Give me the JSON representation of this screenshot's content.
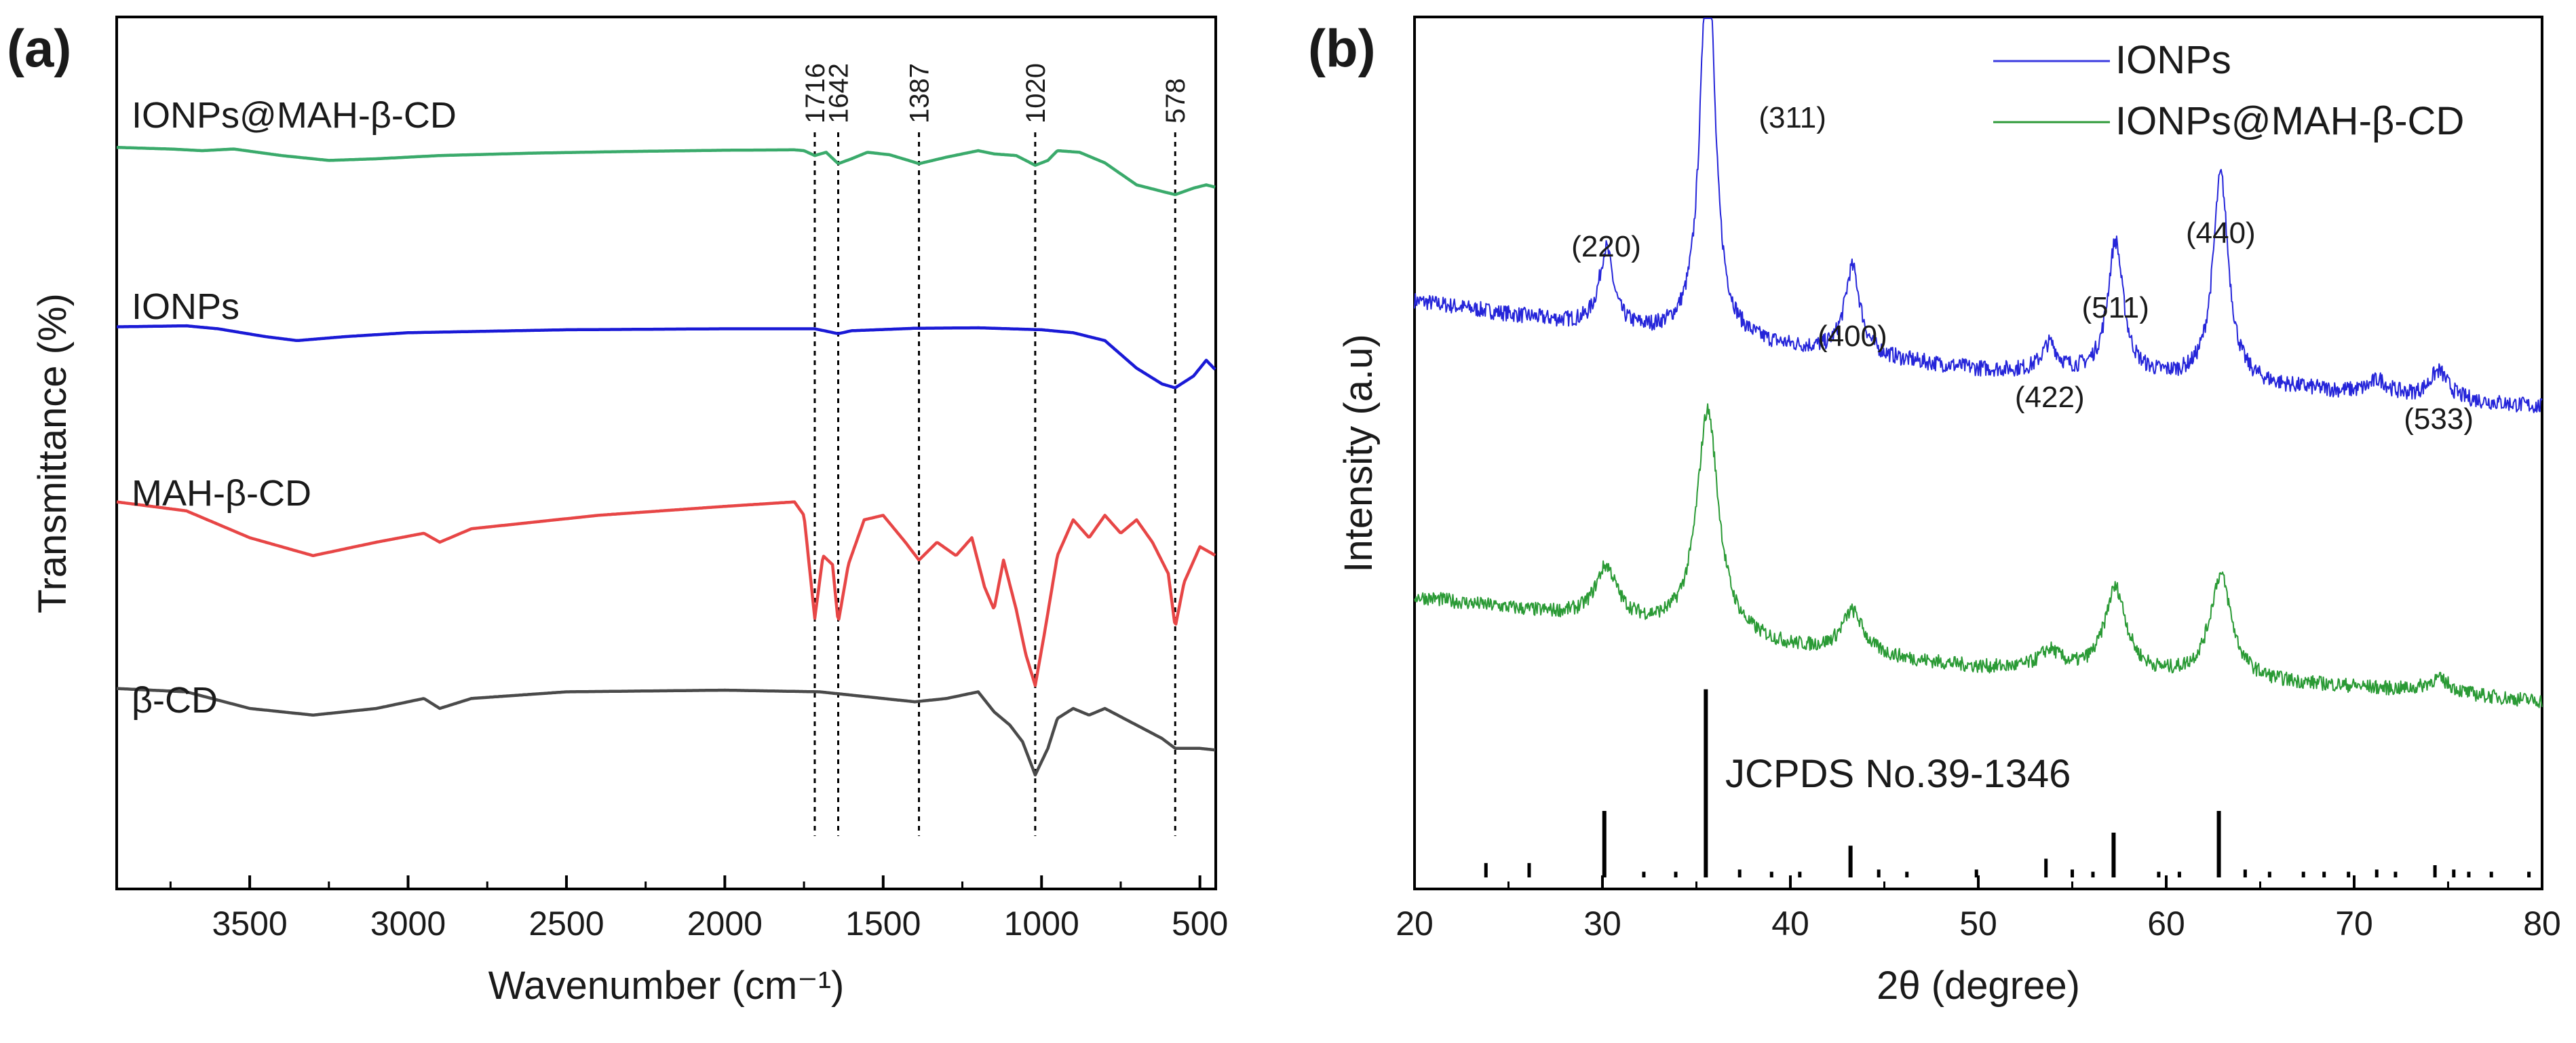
{
  "chart_data": [
    {
      "type": "line",
      "panel_label": "(a)",
      "title": "",
      "xlabel": "Wavenumber (cm⁻¹)",
      "ylabel": "Transmittance (%)",
      "xlim": [
        3920,
        450
      ],
      "x_reversed": true,
      "yticks_shown": false,
      "xticks": [
        3500,
        3000,
        2500,
        2000,
        1500,
        1000,
        500
      ],
      "xtick_labels": [
        "3500",
        "3000",
        "2500",
        "2000",
        "1500",
        "1000",
        "500"
      ],
      "peak_markers": [
        {
          "x": 1716,
          "label": "1716"
        },
        {
          "x": 1642,
          "label": "1642"
        },
        {
          "x": 1387,
          "label": "1387"
        },
        {
          "x": 1020,
          "label": "1020"
        },
        {
          "x": 578,
          "label": "578"
        }
      ],
      "series": [
        {
          "name": "IONPs@MAH-β-CD",
          "color": "#3aaa6b",
          "points": [
            [
              3920,
              0.94
            ],
            [
              3750,
              0.92
            ],
            [
              3650,
              0.9
            ],
            [
              3550,
              0.92
            ],
            [
              3400,
              0.84
            ],
            [
              3250,
              0.78
            ],
            [
              3100,
              0.8
            ],
            [
              2900,
              0.84
            ],
            [
              2600,
              0.87
            ],
            [
              2300,
              0.89
            ],
            [
              2000,
              0.905
            ],
            [
              1780,
              0.91
            ],
            [
              1750,
              0.9
            ],
            [
              1716,
              0.84
            ],
            [
              1680,
              0.88
            ],
            [
              1642,
              0.74
            ],
            [
              1600,
              0.8
            ],
            [
              1550,
              0.88
            ],
            [
              1480,
              0.85
            ],
            [
              1420,
              0.78
            ],
            [
              1387,
              0.74
            ],
            [
              1300,
              0.82
            ],
            [
              1200,
              0.9
            ],
            [
              1150,
              0.86
            ],
            [
              1080,
              0.84
            ],
            [
              1020,
              0.72
            ],
            [
              980,
              0.78
            ],
            [
              950,
              0.9
            ],
            [
              880,
              0.88
            ],
            [
              800,
              0.75
            ],
            [
              700,
              0.48
            ],
            [
              620,
              0.4
            ],
            [
              578,
              0.36
            ],
            [
              520,
              0.44
            ],
            [
              480,
              0.48
            ],
            [
              450,
              0.45
            ]
          ]
        },
        {
          "name": "IONPs",
          "color": "#1a1ad6",
          "points": [
            [
              3920,
              0.92
            ],
            [
              3700,
              0.93
            ],
            [
              3600,
              0.9
            ],
            [
              3450,
              0.82
            ],
            [
              3350,
              0.78
            ],
            [
              3200,
              0.82
            ],
            [
              3000,
              0.86
            ],
            [
              2500,
              0.89
            ],
            [
              2000,
              0.9
            ],
            [
              1716,
              0.9
            ],
            [
              1642,
              0.85
            ],
            [
              1600,
              0.88
            ],
            [
              1400,
              0.905
            ],
            [
              1200,
              0.91
            ],
            [
              1000,
              0.89
            ],
            [
              900,
              0.86
            ],
            [
              800,
              0.78
            ],
            [
              700,
              0.5
            ],
            [
              620,
              0.34
            ],
            [
              578,
              0.3
            ],
            [
              520,
              0.42
            ],
            [
              480,
              0.58
            ],
            [
              450,
              0.48
            ]
          ]
        },
        {
          "name": "MAH-β-CD",
          "color": "#e74646",
          "points": [
            [
              3920,
              0.88
            ],
            [
              3700,
              0.84
            ],
            [
              3500,
              0.72
            ],
            [
              3300,
              0.64
            ],
            [
              3100,
              0.7
            ],
            [
              2950,
              0.74
            ],
            [
              2900,
              0.7
            ],
            [
              2800,
              0.76
            ],
            [
              2400,
              0.82
            ],
            [
              2000,
              0.86
            ],
            [
              1780,
              0.88
            ],
            [
              1750,
              0.82
            ],
            [
              1716,
              0.36
            ],
            [
              1690,
              0.64
            ],
            [
              1660,
              0.6
            ],
            [
              1642,
              0.34
            ],
            [
              1610,
              0.6
            ],
            [
              1560,
              0.8
            ],
            [
              1500,
              0.82
            ],
            [
              1430,
              0.7
            ],
            [
              1387,
              0.62
            ],
            [
              1330,
              0.7
            ],
            [
              1270,
              0.64
            ],
            [
              1220,
              0.72
            ],
            [
              1180,
              0.5
            ],
            [
              1150,
              0.4
            ],
            [
              1120,
              0.62
            ],
            [
              1080,
              0.4
            ],
            [
              1050,
              0.2
            ],
            [
              1020,
              0.06
            ],
            [
              990,
              0.3
            ],
            [
              950,
              0.64
            ],
            [
              900,
              0.8
            ],
            [
              850,
              0.72
            ],
            [
              800,
              0.82
            ],
            [
              750,
              0.74
            ],
            [
              700,
              0.8
            ],
            [
              650,
              0.7
            ],
            [
              600,
              0.56
            ],
            [
              578,
              0.32
            ],
            [
              550,
              0.52
            ],
            [
              500,
              0.68
            ],
            [
              450,
              0.64
            ]
          ]
        },
        {
          "name": "β-CD",
          "color": "#4a4a4a",
          "points": [
            [
              3920,
              0.92
            ],
            [
              3700,
              0.9
            ],
            [
              3500,
              0.8
            ],
            [
              3300,
              0.76
            ],
            [
              3100,
              0.8
            ],
            [
              2950,
              0.86
            ],
            [
              2900,
              0.8
            ],
            [
              2800,
              0.86
            ],
            [
              2500,
              0.9
            ],
            [
              2000,
              0.91
            ],
            [
              1700,
              0.9
            ],
            [
              1500,
              0.86
            ],
            [
              1400,
              0.84
            ],
            [
              1300,
              0.86
            ],
            [
              1200,
              0.9
            ],
            [
              1150,
              0.78
            ],
            [
              1100,
              0.7
            ],
            [
              1060,
              0.6
            ],
            [
              1020,
              0.4
            ],
            [
              980,
              0.56
            ],
            [
              950,
              0.74
            ],
            [
              900,
              0.8
            ],
            [
              850,
              0.76
            ],
            [
              800,
              0.8
            ],
            [
              700,
              0.7
            ],
            [
              620,
              0.62
            ],
            [
              578,
              0.56
            ],
            [
              500,
              0.56
            ],
            [
              450,
              0.55
            ]
          ]
        }
      ]
    },
    {
      "type": "line",
      "panel_label": "(b)",
      "title": "",
      "xlabel": "2θ (degree)",
      "ylabel": "Intensity (a.u)",
      "xlim": [
        20,
        80
      ],
      "yticks_shown": false,
      "xticks": [
        20,
        30,
        40,
        50,
        60,
        70,
        80
      ],
      "xtick_labels": [
        "20",
        "30",
        "40",
        "50",
        "60",
        "70",
        "80"
      ],
      "legend": {
        "position": "top-right",
        "entries": [
          {
            "name": "IONPs",
            "color": "#3a3ae0"
          },
          {
            "name": "IONPs@MAH-β-CD",
            "color": "#2e9a38"
          }
        ]
      },
      "peaks": [
        {
          "x": 30.2,
          "label": "(220)"
        },
        {
          "x": 35.6,
          "label": "(311)"
        },
        {
          "x": 43.3,
          "label": "(400)"
        },
        {
          "x": 53.8,
          "label": "(422)"
        },
        {
          "x": 57.3,
          "label": "(511)"
        },
        {
          "x": 62.9,
          "label": "(440)"
        },
        {
          "x": 74.5,
          "label": "(533)"
        }
      ],
      "series": [
        {
          "name": "IONPs",
          "color": "#2525d9",
          "baseline": [
            [
              20,
              0.96
            ],
            [
              30,
              0.84
            ],
            [
              40,
              0.75
            ],
            [
              50,
              0.66
            ],
            [
              60,
              0.62
            ],
            [
              70,
              0.56
            ],
            [
              80,
              0.5
            ]
          ],
          "peaks": [
            [
              30.2,
              0.34,
              0.45
            ],
            [
              35.6,
              1.78,
              0.45
            ],
            [
              43.3,
              0.38,
              0.5
            ],
            [
              53.8,
              0.12,
              0.5
            ],
            [
              57.3,
              0.58,
              0.5
            ],
            [
              62.9,
              0.9,
              0.5
            ],
            [
              71.3,
              0.06,
              0.6
            ],
            [
              74.5,
              0.12,
              0.6
            ]
          ]
        },
        {
          "name": "IONPs@MAH-β-CD",
          "color": "#2a9a35",
          "baseline": [
            [
              20,
              0.6
            ],
            [
              30,
              0.5
            ],
            [
              40,
              0.38
            ],
            [
              50,
              0.3
            ],
            [
              60,
              0.26
            ],
            [
              70,
              0.22
            ],
            [
              80,
              0.16
            ]
          ],
          "peaks": [
            [
              30.2,
              0.22,
              0.7
            ],
            [
              35.6,
              0.95,
              0.7
            ],
            [
              43.3,
              0.18,
              0.7
            ],
            [
              53.8,
              0.08,
              0.7
            ],
            [
              57.3,
              0.36,
              0.7
            ],
            [
              62.9,
              0.44,
              0.7
            ],
            [
              74.5,
              0.06,
              0.8
            ]
          ]
        }
      ],
      "reference": {
        "label": "JCPDS No.39-1346",
        "lines": [
          [
            23.8,
            0.06
          ],
          [
            26.1,
            0.06
          ],
          [
            30.1,
            0.3
          ],
          [
            32.2,
            0.02
          ],
          [
            33.9,
            0.02
          ],
          [
            35.5,
            0.86
          ],
          [
            37.3,
            0.03
          ],
          [
            39.0,
            0.02
          ],
          [
            40.5,
            0.02
          ],
          [
            43.2,
            0.14
          ],
          [
            44.7,
            0.03
          ],
          [
            46.2,
            0.02
          ],
          [
            49.9,
            0.03
          ],
          [
            53.6,
            0.08
          ],
          [
            55.0,
            0.03
          ],
          [
            56.1,
            0.02
          ],
          [
            57.2,
            0.2
          ],
          [
            59.6,
            0.02
          ],
          [
            60.7,
            0.02
          ],
          [
            62.8,
            0.3
          ],
          [
            64.2,
            0.03
          ],
          [
            65.5,
            0.02
          ],
          [
            67.3,
            0.02
          ],
          [
            68.4,
            0.02
          ],
          [
            69.7,
            0.02
          ],
          [
            71.2,
            0.03
          ],
          [
            72.2,
            0.02
          ],
          [
            74.3,
            0.05
          ],
          [
            75.3,
            0.03
          ],
          [
            76.1,
            0.02
          ],
          [
            77.3,
            0.02
          ],
          [
            79.3,
            0.02
          ]
        ]
      }
    }
  ]
}
